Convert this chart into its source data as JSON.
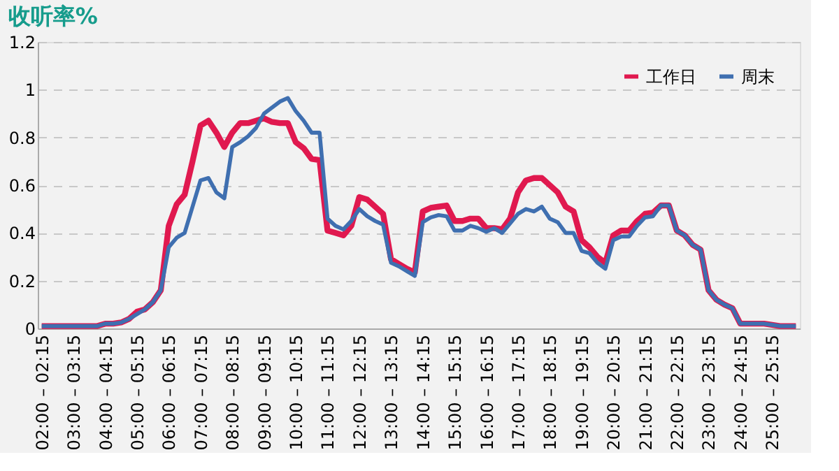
{
  "chart_data": {
    "type": "line",
    "title": "收听率%",
    "categories": [
      "02:00 – 02:15",
      null,
      null,
      null,
      "03:00 – 03:15",
      null,
      null,
      null,
      "04:00 – 04:15",
      null,
      null,
      null,
      "05:00 – 05:15",
      null,
      null,
      null,
      "06:00 – 06:15",
      null,
      null,
      null,
      "07:00 – 07:15",
      null,
      null,
      null,
      "08:00 – 08:15",
      null,
      null,
      null,
      "09:00 – 09:15",
      null,
      null,
      null,
      "10:00 – 10:15",
      null,
      null,
      null,
      "11:00 – 11:15",
      null,
      null,
      null,
      "12:00 – 12:15",
      null,
      null,
      null,
      "13:00 – 13:15",
      null,
      null,
      null,
      "14:00 – 14:15",
      null,
      null,
      null,
      "15:00 – 15:15",
      null,
      null,
      null,
      "16:00 – 16:15",
      null,
      null,
      null,
      "17:00 – 17:15",
      null,
      null,
      null,
      "18:00 – 18:15",
      null,
      null,
      null,
      "19:00 – 19:15",
      null,
      null,
      null,
      "20:00 – 20:15",
      null,
      null,
      null,
      "21:00 – 21:15",
      null,
      null,
      null,
      "22:00 – 22:15",
      null,
      null,
      null,
      "23:00 – 23:15",
      null,
      null,
      null,
      "24:00 – 24:15",
      null,
      null,
      null,
      "25:00 – 25:15",
      null,
      null,
      null
    ],
    "series": [
      {
        "name": "工作日",
        "color": "#e0194f",
        "values": [
          0.01,
          0.01,
          0.01,
          0.01,
          0.01,
          0.01,
          0.01,
          0.01,
          0.02,
          0.02,
          0.025,
          0.04,
          0.07,
          0.08,
          0.11,
          0.16,
          0.43,
          0.52,
          0.56,
          0.7,
          0.85,
          0.87,
          0.82,
          0.76,
          0.82,
          0.86,
          0.86,
          0.87,
          0.88,
          0.865,
          0.86,
          0.86,
          0.78,
          0.755,
          0.71,
          0.705,
          0.41,
          0.4,
          0.39,
          0.43,
          0.55,
          0.54,
          0.51,
          0.48,
          0.29,
          0.27,
          0.25,
          0.235,
          0.49,
          0.505,
          0.51,
          0.515,
          0.45,
          0.45,
          0.46,
          0.46,
          0.42,
          0.42,
          0.415,
          0.46,
          0.57,
          0.62,
          0.63,
          0.63,
          0.6,
          0.57,
          0.51,
          0.49,
          0.37,
          0.34,
          0.3,
          0.275,
          0.39,
          0.41,
          0.41,
          0.45,
          0.48,
          0.485,
          0.515,
          0.515,
          0.41,
          0.39,
          0.35,
          0.33,
          0.16,
          0.12,
          0.1,
          0.085,
          0.02,
          0.02,
          0.02,
          0.02,
          0.015,
          0.01,
          0.01,
          0.01
        ]
      },
      {
        "name": "周末",
        "color": "#3f6fb0",
        "values": [
          0.01,
          0.01,
          0.01,
          0.01,
          0.01,
          0.01,
          0.01,
          0.01,
          0.02,
          0.02,
          0.025,
          0.04,
          0.06,
          0.08,
          0.11,
          0.16,
          0.34,
          0.38,
          0.4,
          0.51,
          0.62,
          0.63,
          0.57,
          0.545,
          0.76,
          0.78,
          0.805,
          0.84,
          0.9,
          0.925,
          0.95,
          0.965,
          0.91,
          0.87,
          0.82,
          0.82,
          0.46,
          0.43,
          0.415,
          0.45,
          0.5,
          0.47,
          0.45,
          0.435,
          0.275,
          0.26,
          0.24,
          0.22,
          0.445,
          0.465,
          0.475,
          0.47,
          0.41,
          0.41,
          0.43,
          0.42,
          0.405,
          0.42,
          0.4,
          0.44,
          0.48,
          0.5,
          0.49,
          0.51,
          0.46,
          0.445,
          0.4,
          0.4,
          0.325,
          0.315,
          0.275,
          0.25,
          0.37,
          0.385,
          0.385,
          0.43,
          0.465,
          0.47,
          0.515,
          0.515,
          0.41,
          0.39,
          0.35,
          0.33,
          0.16,
          0.12,
          0.1,
          0.085,
          0.02,
          0.02,
          0.02,
          0.02,
          0.015,
          0.01,
          0.01,
          0.01
        ]
      }
    ],
    "ylim": [
      0,
      1.2
    ],
    "yticks": [
      0,
      0.2,
      0.4,
      0.6,
      0.8,
      1,
      1.2
    ],
    "grid": "y",
    "legend": "top right",
    "marker": "none",
    "line_style": "solid"
  }
}
